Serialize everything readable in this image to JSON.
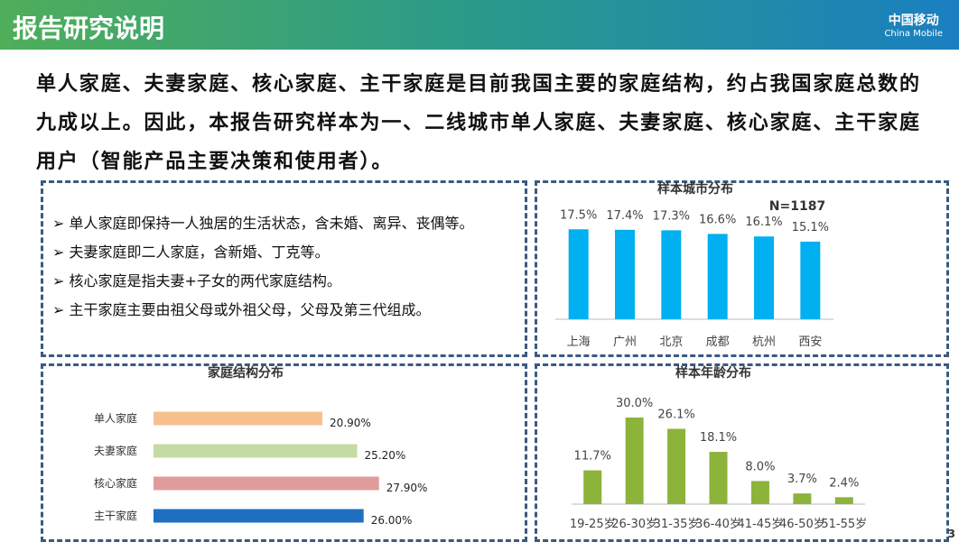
{
  "header": {
    "title": "报告研究说明",
    "logo_cn": "中国移动",
    "logo_en": "China Mobile"
  },
  "intro": "单人家庭、夫妻家庭、核心家庭、主干家庭是目前我国主要的家庭结构，约占我国家庭总数的九成以上。因此，本报告研究样本为一、二线城市单人家庭、夫妻家庭、核心家庭、主干家庭用户（智能产品主要决策和使用者）。",
  "definitions": [
    "单人家庭即保持一人独居的生活状态，含未婚、离异、丧偶等。",
    "夫妻家庭即二人家庭，含新婚、丁克等。",
    "核心家庭是指夫妻+子女的两代家庭结构。",
    "主干家庭主要由祖父母或外祖父母，父母及第三代组成。"
  ],
  "page_number": "3",
  "chart_data": [
    {
      "type": "bar",
      "title": "样本城市分布",
      "annotation": "N=1187",
      "categories": [
        "上海",
        "广州",
        "北京",
        "成都",
        "杭州",
        "西安"
      ],
      "values": [
        17.5,
        17.4,
        17.3,
        16.6,
        16.1,
        15.1
      ],
      "value_labels": [
        "17.5%",
        "17.4%",
        "17.3%",
        "16.6%",
        "16.1%",
        "15.1%"
      ],
      "color": "#00b0f0"
    },
    {
      "type": "barh",
      "title": "家庭结构分布",
      "categories": [
        "单人家庭",
        "夫妻家庭",
        "核心家庭",
        "主干家庭"
      ],
      "values": [
        20.9,
        25.2,
        27.9,
        26.0
      ],
      "value_labels": [
        "20.90%",
        "25.20%",
        "27.90%",
        "26.00%"
      ],
      "colors": [
        "#f8c08f",
        "#c5dba2",
        "#e09c9c",
        "#1f70c0"
      ]
    },
    {
      "type": "bar",
      "title": "样本年龄分布",
      "categories": [
        "19-25岁",
        "26-30岁",
        "31-35岁",
        "36-40岁",
        "41-45岁",
        "46-50岁",
        "51-55岁"
      ],
      "values": [
        11.7,
        30.0,
        26.1,
        18.1,
        8.0,
        3.7,
        2.4
      ],
      "value_labels": [
        "11.7%",
        "30.0%",
        "26.1%",
        "18.1%",
        "8.0%",
        "3.7%",
        "2.4%"
      ],
      "color": "#8cb33a"
    }
  ]
}
